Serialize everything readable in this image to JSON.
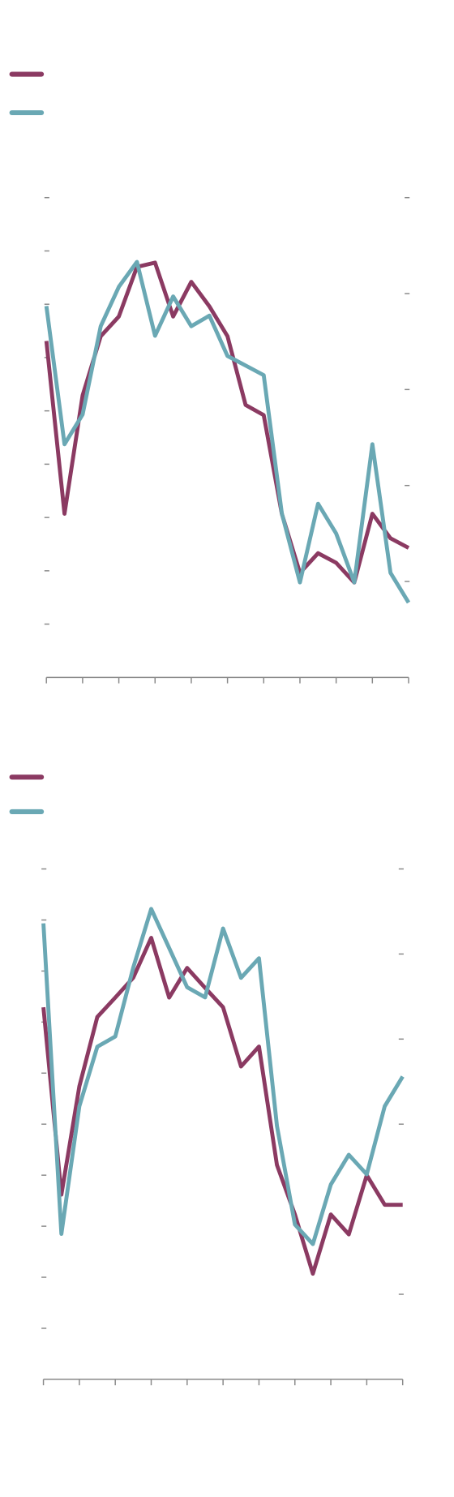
{
  "chart_data": [
    {
      "type": "line",
      "x": [
        0,
        0.5,
        1,
        1.5,
        2,
        2.5,
        3,
        3.5,
        4,
        4.5,
        5,
        5.5,
        6,
        6.5,
        7,
        7.5,
        8,
        8.5,
        9,
        9.5,
        10
      ],
      "xlim": [
        0,
        10
      ],
      "xticks": [
        0,
        1,
        2,
        3,
        4,
        5,
        6,
        7,
        8,
        9,
        10
      ],
      "ylim": [
        0,
        90
      ],
      "yticks": [
        10,
        20,
        30,
        40,
        50,
        60,
        70,
        80,
        90
      ],
      "y2lim": [
        0,
        50
      ],
      "y2ticks": [
        10,
        20,
        30,
        40,
        50
      ],
      "series": [
        {
          "color": "#8b3a62",
          "values": [
            63.1,
            30.7,
            52.9,
            64.0,
            67.7,
            77.0,
            77.8,
            67.7,
            74.2,
            69.6,
            64.0,
            51.1,
            49.2,
            30.7,
            19.6,
            23.3,
            21.5,
            17.8,
            30.7,
            26.1,
            24.3
          ]
        },
        {
          "color": "#6aa8b4",
          "axis": "y2",
          "values": [
            38.7,
            24.3,
            27.4,
            36.6,
            40.7,
            43.3,
            35.6,
            39.7,
            36.6,
            37.7,
            33.5,
            32.5,
            31.5,
            17.1,
            9.9,
            18.1,
            15.0,
            9.9,
            24.3,
            10.9,
            7.8
          ]
        }
      ]
    },
    {
      "type": "line",
      "x": [
        0,
        0.5,
        1,
        1.5,
        2,
        2.5,
        3,
        3.5,
        4,
        4.5,
        5,
        5.5,
        6,
        6.5,
        7,
        7.5,
        8,
        8.5,
        9,
        9.5,
        10
      ],
      "xlim": [
        0,
        10
      ],
      "xticks": [
        0,
        1,
        2,
        3,
        4,
        5,
        6,
        7,
        8,
        9,
        10
      ],
      "ylim": [
        -10,
        90
      ],
      "yticks": [
        0,
        10,
        20,
        30,
        40,
        50,
        60,
        70,
        80,
        90
      ],
      "y2lim": [
        0,
        6
      ],
      "y2ticks": [
        1,
        3,
        4,
        5,
        6
      ],
      "series": [
        {
          "color": "#8b3a62",
          "values": [
            62.9,
            26.2,
            47.4,
            61.0,
            64.8,
            68.7,
            76.5,
            64.8,
            70.6,
            66.7,
            62.9,
            51.3,
            55.2,
            32.0,
            22.3,
            10.7,
            22.3,
            18.4,
            30.0,
            24.2,
            24.2
          ]
        },
        {
          "color": "#6aa8b4",
          "axis": "y2",
          "values": [
            5.36,
            1.71,
            3.21,
            3.91,
            4.03,
            4.84,
            5.53,
            5.07,
            4.61,
            4.49,
            5.3,
            4.72,
            4.95,
            2.98,
            1.82,
            1.59,
            2.29,
            2.64,
            2.41,
            3.21,
            3.56
          ]
        }
      ]
    }
  ]
}
